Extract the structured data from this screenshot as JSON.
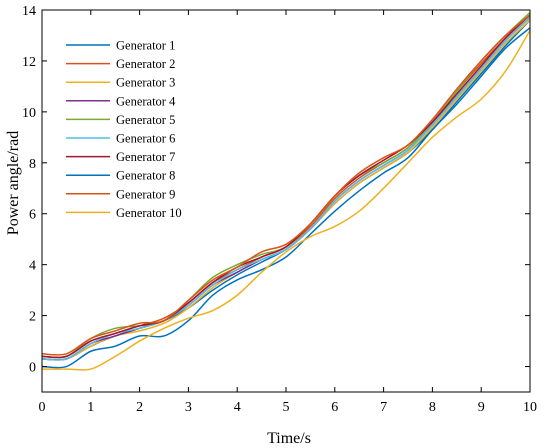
{
  "chart_data": {
    "type": "line",
    "title": "",
    "xlabel": "Time/s",
    "ylabel": "Power angle/rad",
    "xlim": [
      0,
      10
    ],
    "ylim": [
      -1,
      14
    ],
    "x_ticks": [
      0,
      1,
      2,
      3,
      4,
      5,
      6,
      7,
      8,
      9,
      10
    ],
    "y_ticks": [
      0,
      2,
      4,
      6,
      8,
      10,
      12,
      14
    ],
    "grid": false,
    "legend_position": "top-left",
    "series": [
      {
        "name": "Generator 1",
        "color": "#0072BD",
        "points": [
          [
            0,
            0.3
          ],
          [
            0.5,
            0.3
          ],
          [
            1,
            0.8
          ],
          [
            1.5,
            1.2
          ],
          [
            2,
            1.5
          ],
          [
            2.5,
            1.8
          ],
          [
            3,
            2.3
          ],
          [
            3.5,
            3.0
          ],
          [
            4,
            3.6
          ],
          [
            4.5,
            4.1
          ],
          [
            5,
            4.6
          ],
          [
            5.5,
            5.4
          ],
          [
            6,
            6.4
          ],
          [
            6.5,
            7.2
          ],
          [
            7,
            7.8
          ],
          [
            7.5,
            8.4
          ],
          [
            8,
            9.3
          ],
          [
            8.5,
            10.4
          ],
          [
            9,
            11.5
          ],
          [
            9.5,
            12.6
          ],
          [
            10,
            13.6
          ]
        ]
      },
      {
        "name": "Generator 2",
        "color": "#D95319",
        "points": [
          [
            0,
            0.4
          ],
          [
            0.5,
            0.4
          ],
          [
            1,
            1.0
          ],
          [
            1.5,
            1.3
          ],
          [
            2,
            1.6
          ],
          [
            2.5,
            1.9
          ],
          [
            3,
            2.5
          ],
          [
            3.5,
            3.3
          ],
          [
            4,
            3.8
          ],
          [
            4.5,
            4.3
          ],
          [
            5,
            4.7
          ],
          [
            5.5,
            5.5
          ],
          [
            6,
            6.6
          ],
          [
            6.5,
            7.4
          ],
          [
            7,
            8.0
          ],
          [
            7.5,
            8.6
          ],
          [
            8,
            9.6
          ],
          [
            8.5,
            10.8
          ],
          [
            9,
            11.9
          ],
          [
            9.5,
            12.9
          ],
          [
            10,
            13.8
          ]
        ]
      },
      {
        "name": "Generator 3",
        "color": "#EDB120",
        "points": [
          [
            0,
            0.3
          ],
          [
            0.5,
            0.3
          ],
          [
            1,
            0.8
          ],
          [
            1.5,
            1.2
          ],
          [
            2,
            1.4
          ],
          [
            2.5,
            1.7
          ],
          [
            3,
            2.3
          ],
          [
            3.5,
            3.1
          ],
          [
            4,
            3.7
          ],
          [
            4.5,
            4.2
          ],
          [
            5,
            4.6
          ],
          [
            5.5,
            5.4
          ],
          [
            6,
            6.4
          ],
          [
            6.5,
            7.2
          ],
          [
            7,
            7.8
          ],
          [
            7.5,
            8.4
          ],
          [
            8,
            9.4
          ],
          [
            8.5,
            10.5
          ],
          [
            9,
            11.6
          ],
          [
            9.5,
            12.7
          ],
          [
            10,
            13.6
          ]
        ]
      },
      {
        "name": "Generator 4",
        "color": "#7E2F8E",
        "points": [
          [
            0,
            0.3
          ],
          [
            0.5,
            0.3
          ],
          [
            1,
            0.9
          ],
          [
            1.5,
            1.2
          ],
          [
            2,
            1.5
          ],
          [
            2.5,
            1.8
          ],
          [
            3,
            2.4
          ],
          [
            3.5,
            3.2
          ],
          [
            4,
            3.7
          ],
          [
            4.5,
            4.2
          ],
          [
            5,
            4.6
          ],
          [
            5.5,
            5.4
          ],
          [
            6,
            6.5
          ],
          [
            6.5,
            7.3
          ],
          [
            7,
            7.9
          ],
          [
            7.5,
            8.5
          ],
          [
            8,
            9.5
          ],
          [
            8.5,
            10.6
          ],
          [
            9,
            11.7
          ],
          [
            9.5,
            12.8
          ],
          [
            10,
            13.7
          ]
        ]
      },
      {
        "name": "Generator 5",
        "color": "#77AC30",
        "points": [
          [
            0,
            0.4
          ],
          [
            0.5,
            0.4
          ],
          [
            1,
            1.1
          ],
          [
            1.5,
            1.5
          ],
          [
            2,
            1.6
          ],
          [
            2.5,
            1.8
          ],
          [
            3,
            2.6
          ],
          [
            3.5,
            3.5
          ],
          [
            4,
            4.0
          ],
          [
            4.5,
            4.4
          ],
          [
            5,
            4.7
          ],
          [
            5.5,
            5.6
          ],
          [
            6,
            6.7
          ],
          [
            6.5,
            7.5
          ],
          [
            7,
            8.0
          ],
          [
            7.5,
            8.6
          ],
          [
            8,
            9.6
          ],
          [
            8.5,
            10.8
          ],
          [
            9,
            12.0
          ],
          [
            9.5,
            13.0
          ],
          [
            10,
            13.9
          ]
        ]
      },
      {
        "name": "Generator 6",
        "color": "#4DBEEE",
        "points": [
          [
            0,
            0.3
          ],
          [
            0.5,
            0.3
          ],
          [
            1,
            0.9
          ],
          [
            1.5,
            1.3
          ],
          [
            2,
            1.5
          ],
          [
            2.5,
            1.8
          ],
          [
            3,
            2.4
          ],
          [
            3.5,
            3.2
          ],
          [
            4,
            3.8
          ],
          [
            4.5,
            4.2
          ],
          [
            5,
            4.6
          ],
          [
            5.5,
            5.4
          ],
          [
            6,
            6.5
          ],
          [
            6.5,
            7.3
          ],
          [
            7,
            7.9
          ],
          [
            7.5,
            8.5
          ],
          [
            8,
            9.5
          ],
          [
            8.5,
            10.6
          ],
          [
            9,
            11.7
          ],
          [
            9.5,
            12.8
          ],
          [
            10,
            13.7
          ]
        ]
      },
      {
        "name": "Generator 7",
        "color": "#A2142F",
        "points": [
          [
            0,
            0.4
          ],
          [
            0.5,
            0.4
          ],
          [
            1,
            1.0
          ],
          [
            1.5,
            1.3
          ],
          [
            2,
            1.6
          ],
          [
            2.5,
            1.8
          ],
          [
            3,
            2.5
          ],
          [
            3.5,
            3.3
          ],
          [
            4,
            3.9
          ],
          [
            4.5,
            4.3
          ],
          [
            5,
            4.7
          ],
          [
            5.5,
            5.6
          ],
          [
            6,
            6.7
          ],
          [
            6.5,
            7.5
          ],
          [
            7,
            8.1
          ],
          [
            7.5,
            8.7
          ],
          [
            8,
            9.6
          ],
          [
            8.5,
            10.7
          ],
          [
            9,
            11.8
          ],
          [
            9.5,
            12.9
          ],
          [
            10,
            13.8
          ]
        ]
      },
      {
        "name": "Generator 8",
        "color": "#0072BD",
        "points": [
          [
            0,
            0.0
          ],
          [
            0.5,
            0.0
          ],
          [
            1,
            0.6
          ],
          [
            1.5,
            0.8
          ],
          [
            2,
            1.2
          ],
          [
            2.5,
            1.2
          ],
          [
            3,
            1.8
          ],
          [
            3.5,
            2.8
          ],
          [
            4,
            3.4
          ],
          [
            4.5,
            3.8
          ],
          [
            5,
            4.3
          ],
          [
            5.5,
            5.2
          ],
          [
            6,
            6.1
          ],
          [
            6.5,
            6.9
          ],
          [
            7,
            7.6
          ],
          [
            7.5,
            8.2
          ],
          [
            8,
            9.3
          ],
          [
            8.5,
            10.3
          ],
          [
            9,
            11.4
          ],
          [
            9.5,
            12.5
          ],
          [
            10,
            13.3
          ]
        ]
      },
      {
        "name": "Generator 9",
        "color": "#D95319",
        "points": [
          [
            0,
            0.5
          ],
          [
            0.5,
            0.5
          ],
          [
            1,
            1.1
          ],
          [
            1.5,
            1.4
          ],
          [
            2,
            1.7
          ],
          [
            2.5,
            1.8
          ],
          [
            3,
            2.6
          ],
          [
            3.5,
            3.4
          ],
          [
            4,
            3.9
          ],
          [
            4.5,
            4.5
          ],
          [
            5,
            4.8
          ],
          [
            5.5,
            5.6
          ],
          [
            6,
            6.7
          ],
          [
            6.5,
            7.6
          ],
          [
            7,
            8.2
          ],
          [
            7.5,
            8.7
          ],
          [
            8,
            9.7
          ],
          [
            8.5,
            10.9
          ],
          [
            9,
            12.0
          ],
          [
            9.5,
            13.0
          ],
          [
            10,
            13.8
          ]
        ]
      },
      {
        "name": "Generator 10",
        "color": "#EDB120",
        "points": [
          [
            0,
            -0.1
          ],
          [
            0.5,
            -0.1
          ],
          [
            1,
            -0.1
          ],
          [
            1.5,
            0.4
          ],
          [
            2,
            1.0
          ],
          [
            2.5,
            1.5
          ],
          [
            3,
            1.9
          ],
          [
            3.5,
            2.2
          ],
          [
            4,
            2.8
          ],
          [
            4.5,
            3.7
          ],
          [
            5,
            4.5
          ],
          [
            5.5,
            5.1
          ],
          [
            6,
            5.5
          ],
          [
            6.5,
            6.1
          ],
          [
            7,
            7.0
          ],
          [
            7.5,
            8.0
          ],
          [
            8,
            9.0
          ],
          [
            8.5,
            9.8
          ],
          [
            9,
            10.5
          ],
          [
            9.5,
            11.6
          ],
          [
            10,
            13.2
          ]
        ]
      }
    ]
  }
}
